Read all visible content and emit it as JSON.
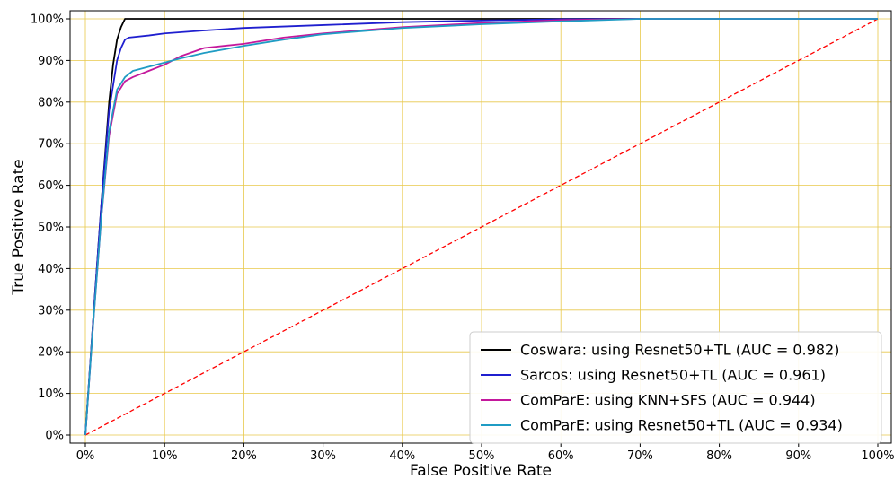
{
  "chart_data": {
    "type": "line",
    "xlabel": "False Positive Rate",
    "ylabel": "True Positive Rate",
    "xlim": [
      0,
      100
    ],
    "ylim": [
      0,
      100
    ],
    "x_ticks": [
      "0%",
      "10%",
      "20%",
      "30%",
      "40%",
      "50%",
      "60%",
      "70%",
      "80%",
      "90%",
      "100%"
    ],
    "y_ticks": [
      "0%",
      "10%",
      "20%",
      "30%",
      "40%",
      "50%",
      "60%",
      "70%",
      "80%",
      "90%",
      "100%"
    ],
    "grid": true,
    "grid_color": "#e8c84a",
    "legend_position": "bottom-right",
    "series": [
      {
        "name": "Coswara: using Resnet50+TL (AUC = 0.982)",
        "color": "#000000",
        "style": "solid",
        "x": [
          0,
          1,
          2,
          3,
          3.5,
          4,
          4.5,
          5,
          5.5,
          100
        ],
        "y": [
          0,
          28,
          55,
          80,
          89,
          95,
          98,
          100,
          100,
          100
        ]
      },
      {
        "name": "Sarcos: using Resnet50+TL (AUC = 0.961)",
        "color": "#1f1fcf",
        "style": "solid",
        "x": [
          0,
          1,
          2,
          3,
          4,
          4.5,
          5,
          5.5,
          8,
          10,
          15,
          20,
          30,
          40,
          50,
          60,
          70,
          100
        ],
        "y": [
          0,
          28,
          55,
          78,
          90,
          93,
          95,
          95.5,
          96,
          96.5,
          97.2,
          97.8,
          98.5,
          99.2,
          99.6,
          99.9,
          100,
          100
        ]
      },
      {
        "name": "ComParE: using KNN+SFS (AUC = 0.944)",
        "color": "#c4189c",
        "style": "solid",
        "x": [
          0,
          1,
          2,
          3,
          4,
          5,
          6,
          8,
          10,
          12,
          15,
          20,
          25,
          30,
          40,
          50,
          60,
          70,
          100
        ],
        "y": [
          0,
          27,
          52,
          72,
          82,
          85,
          86,
          87.5,
          89,
          91,
          93,
          94,
          95.5,
          96.5,
          98,
          99,
          99.7,
          100,
          100
        ]
      },
      {
        "name": "ComParE: using Resnet50+TL (AUC = 0.934)",
        "color": "#1f9cc4",
        "style": "solid",
        "x": [
          0,
          1,
          2,
          3,
          4,
          5,
          6,
          8,
          10,
          12,
          15,
          20,
          25,
          30,
          40,
          50,
          60,
          70,
          100
        ],
        "y": [
          0,
          27,
          52,
          73,
          83,
          86,
          87.5,
          88.5,
          89.5,
          90.5,
          91.8,
          93.5,
          95,
          96.3,
          97.8,
          98.7,
          99.4,
          100,
          100
        ]
      },
      {
        "name": "",
        "color": "#ff0000",
        "style": "dashed",
        "x": [
          0,
          100
        ],
        "y": [
          0,
          100
        ]
      }
    ]
  }
}
